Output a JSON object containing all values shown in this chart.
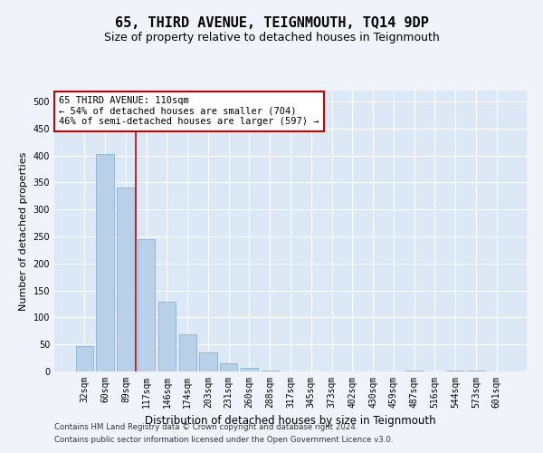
{
  "title": "65, THIRD AVENUE, TEIGNMOUTH, TQ14 9DP",
  "subtitle": "Size of property relative to detached houses in Teignmouth",
  "xlabel": "Distribution of detached houses by size in Teignmouth",
  "ylabel": "Number of detached properties",
  "categories": [
    "32sqm",
    "60sqm",
    "89sqm",
    "117sqm",
    "146sqm",
    "174sqm",
    "203sqm",
    "231sqm",
    "260sqm",
    "288sqm",
    "317sqm",
    "345sqm",
    "373sqm",
    "402sqm",
    "430sqm",
    "459sqm",
    "487sqm",
    "516sqm",
    "544sqm",
    "573sqm",
    "601sqm"
  ],
  "values": [
    47,
    403,
    340,
    245,
    130,
    68,
    35,
    15,
    7,
    2,
    0,
    0,
    0,
    0,
    0,
    0,
    2,
    0,
    2,
    2,
    0
  ],
  "bar_color": "#b8d0e8",
  "bar_edge_color": "#7aaad0",
  "vline_x_index": 2.5,
  "vline_color": "#cc0000",
  "annotation_text": "65 THIRD AVENUE: 110sqm\n← 54% of detached houses are smaller (704)\n46% of semi-detached houses are larger (597) →",
  "annotation_box_color": "#ffffff",
  "annotation_box_edge_color": "#cc0000",
  "ylim": [
    0,
    520
  ],
  "yticks": [
    0,
    50,
    100,
    150,
    200,
    250,
    300,
    350,
    400,
    450,
    500
  ],
  "fig_bg_color": "#f0f4fa",
  "plot_bg_color": "#dce8f5",
  "footer_line1": "Contains HM Land Registry data © Crown copyright and database right 2024.",
  "footer_line2": "Contains public sector information licensed under the Open Government Licence v3.0.",
  "title_fontsize": 11,
  "subtitle_fontsize": 9,
  "tick_fontsize": 7,
  "xlabel_fontsize": 8.5,
  "ylabel_fontsize": 8
}
